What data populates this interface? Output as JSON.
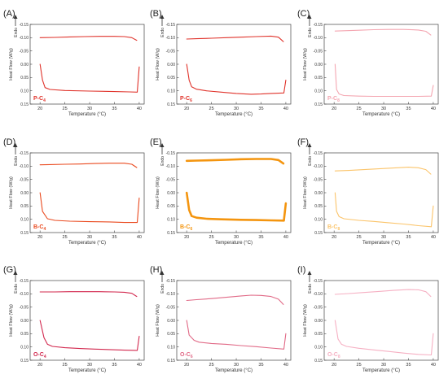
{
  "figure": {
    "xlabel": "Temperature (°C)",
    "ylabel": "Heat Flow (W/g)",
    "endo_label": "Endo",
    "xlim": [
      18,
      41
    ],
    "ylim": [
      -0.15,
      0.15
    ],
    "xticks": [
      "20",
      "25",
      "30",
      "35",
      "40"
    ],
    "yticks": [
      "-0.15",
      "-0.10",
      "-0.05",
      "0.00",
      "0.05",
      "0.10",
      "0.15"
    ]
  },
  "chart_data": [
    {
      "type": "line",
      "panel": "(A)",
      "label_main": "P-C",
      "label_sub": "4",
      "color": "#e0332b",
      "series": [
        {
          "x": [
            20,
            23,
            26,
            29,
            32,
            35,
            37,
            38.5,
            39.5
          ],
          "y": [
            -0.1,
            -0.101,
            -0.103,
            -0.104,
            -0.105,
            -0.105,
            -0.104,
            -0.1,
            -0.09
          ]
        },
        {
          "x": [
            40,
            39.6,
            38,
            35,
            30,
            25,
            22,
            21,
            20.5,
            20
          ],
          "y": [
            0.01,
            0.105,
            0.104,
            0.103,
            0.101,
            0.099,
            0.095,
            0.088,
            0.06,
            0.0
          ]
        }
      ]
    },
    {
      "type": "line",
      "panel": "(B)",
      "label_main": "P-C",
      "label_sub": "6",
      "color": "#e0332b",
      "series": [
        {
          "x": [
            20,
            22,
            25,
            28,
            31,
            34,
            37,
            38.5,
            39.5
          ],
          "y": [
            -0.095,
            -0.096,
            -0.098,
            -0.1,
            -0.102,
            -0.104,
            -0.106,
            -0.102,
            -0.085
          ]
        },
        {
          "x": [
            40,
            39.6,
            37,
            35,
            33,
            30,
            27,
            24,
            22,
            21,
            20.5,
            20
          ],
          "y": [
            0.06,
            0.108,
            0.11,
            0.112,
            0.113,
            0.11,
            0.105,
            0.1,
            0.094,
            0.085,
            0.06,
            0.0
          ]
        }
      ]
    },
    {
      "type": "line",
      "panel": "(C)",
      "label_main": "P-C",
      "label_sub": "8",
      "color": "#f4a6b1",
      "series": [
        {
          "x": [
            20.2,
            22,
            25,
            28,
            31,
            34,
            37,
            38.5,
            39.5
          ],
          "y": [
            -0.125,
            -0.126,
            -0.128,
            -0.13,
            -0.131,
            -0.131,
            -0.129,
            -0.124,
            -0.11
          ]
        },
        {
          "x": [
            40,
            39.6,
            37,
            34,
            31,
            28,
            25,
            22,
            21,
            20.5,
            20.2
          ],
          "y": [
            0.08,
            0.12,
            0.121,
            0.121,
            0.121,
            0.121,
            0.12,
            0.118,
            0.112,
            0.095,
            0.0
          ]
        }
      ]
    },
    {
      "type": "line",
      "panel": "(D)",
      "label_main": "B-C",
      "label_sub": "4",
      "color": "#ea4a1f",
      "series": [
        {
          "x": [
            20,
            22,
            25,
            28,
            31,
            34,
            37,
            38.5,
            39.5
          ],
          "y": [
            -0.105,
            -0.106,
            -0.107,
            -0.108,
            -0.11,
            -0.111,
            -0.111,
            -0.107,
            -0.095
          ]
        },
        {
          "x": [
            40,
            39.6,
            37,
            34,
            30,
            26,
            23,
            21.5,
            20.5,
            20
          ],
          "y": [
            0.02,
            0.112,
            0.112,
            0.11,
            0.109,
            0.107,
            0.104,
            0.098,
            0.07,
            0.0
          ]
        }
      ]
    },
    {
      "type": "line",
      "panel": "(E)",
      "label_main": "B-C",
      "label_sub": "6",
      "color": "#f4950f",
      "series": [
        {
          "x": [
            20,
            22,
            25,
            28,
            31,
            34,
            37,
            38.5,
            39.5
          ],
          "y": [
            -0.12,
            -0.121,
            -0.122,
            -0.124,
            -0.126,
            -0.127,
            -0.127,
            -0.123,
            -0.11
          ]
        },
        {
          "x": [
            40,
            39.6,
            37,
            34,
            31,
            27,
            24,
            22,
            21,
            20.5,
            20
          ],
          "y": [
            0.04,
            0.105,
            0.104,
            0.103,
            0.102,
            0.1,
            0.098,
            0.094,
            0.088,
            0.065,
            0.0
          ]
        }
      ]
    },
    {
      "type": "line",
      "panel": "(F)",
      "label_main": "B-C",
      "label_sub": "8",
      "color": "#fbc46a",
      "series": [
        {
          "x": [
            20.2,
            23,
            26,
            29,
            32,
            35,
            37,
            38.5,
            39.5
          ],
          "y": [
            -0.082,
            -0.084,
            -0.087,
            -0.09,
            -0.093,
            -0.096,
            -0.094,
            -0.087,
            -0.07
          ]
        },
        {
          "x": [
            40,
            39.6,
            37,
            34,
            31,
            28,
            25,
            22,
            21,
            20.5,
            20.2
          ],
          "y": [
            0.05,
            0.128,
            0.124,
            0.118,
            0.113,
            0.108,
            0.104,
            0.098,
            0.09,
            0.07,
            0.0
          ]
        }
      ]
    },
    {
      "type": "line",
      "panel": "(G)",
      "label_main": "O-C",
      "label_sub": "4",
      "color": "#d2284e",
      "series": [
        {
          "x": [
            20,
            23,
            26,
            29,
            32,
            35,
            37,
            38.5,
            39.5
          ],
          "y": [
            -0.107,
            -0.107,
            -0.108,
            -0.108,
            -0.108,
            -0.107,
            -0.106,
            -0.102,
            -0.09
          ]
        },
        {
          "x": [
            40,
            39.6,
            37,
            34,
            31,
            28,
            25,
            22.5,
            21.5,
            20.8,
            20
          ],
          "y": [
            0.06,
            0.113,
            0.112,
            0.11,
            0.108,
            0.106,
            0.103,
            0.098,
            0.09,
            0.065,
            0.0
          ]
        }
      ]
    },
    {
      "type": "line",
      "panel": "(H)",
      "label_main": "O-C",
      "label_sub": "6",
      "color": "#e16a87",
      "series": [
        {
          "x": [
            20,
            22,
            25,
            28,
            31,
            33,
            35,
            37,
            38.5,
            39.5
          ],
          "y": [
            -0.075,
            -0.078,
            -0.082,
            -0.087,
            -0.092,
            -0.095,
            -0.094,
            -0.09,
            -0.08,
            -0.06
          ]
        },
        {
          "x": [
            40,
            39.6,
            37,
            34,
            31,
            28,
            25,
            22.5,
            21.5,
            20.5,
            20
          ],
          "y": [
            0.05,
            0.108,
            0.104,
            0.099,
            0.095,
            0.09,
            0.087,
            0.082,
            0.075,
            0.055,
            0.0
          ]
        }
      ]
    },
    {
      "type": "line",
      "panel": "(I)",
      "label_main": "O-C",
      "label_sub": "8",
      "color": "#f6b0c3",
      "series": [
        {
          "x": [
            20.2,
            23,
            26,
            29,
            32,
            35,
            37,
            38.5,
            39.5
          ],
          "y": [
            -0.098,
            -0.101,
            -0.105,
            -0.109,
            -0.113,
            -0.116,
            -0.115,
            -0.108,
            -0.09
          ]
        },
        {
          "x": [
            40,
            39.6,
            37,
            34,
            31,
            28,
            25,
            22.5,
            21.5,
            20.8,
            20.2
          ],
          "y": [
            0.05,
            0.13,
            0.128,
            0.123,
            0.117,
            0.111,
            0.105,
            0.098,
            0.09,
            0.07,
            0.0
          ]
        }
      ]
    }
  ]
}
